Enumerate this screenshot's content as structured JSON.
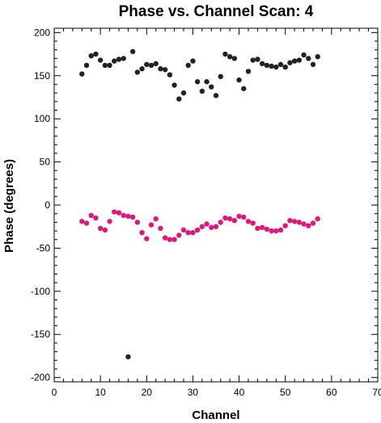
{
  "chart_data": {
    "type": "scatter",
    "title": "Phase vs. Channel Scan: 4",
    "xlabel": "Channel",
    "ylabel": "Phase (degrees)",
    "xlim": [
      0,
      70
    ],
    "ylim": [
      -205,
      205
    ],
    "x_ticks": [
      0,
      10,
      20,
      30,
      40,
      50,
      60,
      70
    ],
    "y_ticks": [
      -200,
      -150,
      -100,
      -50,
      0,
      50,
      100,
      150,
      200
    ],
    "grid": false,
    "series": [
      {
        "color": "#222222",
        "points": [
          [
            6,
            152
          ],
          [
            7,
            162
          ],
          [
            8,
            173
          ],
          [
            9,
            175
          ],
          [
            10,
            168
          ],
          [
            11,
            162
          ],
          [
            12,
            162
          ],
          [
            13,
            167
          ],
          [
            14,
            169
          ],
          [
            15,
            170
          ],
          [
            16,
            -176
          ],
          [
            17,
            178
          ],
          [
            18,
            154
          ],
          [
            19,
            158
          ],
          [
            20,
            163
          ],
          [
            21,
            162
          ],
          [
            22,
            164
          ],
          [
            23,
            158
          ],
          [
            24,
            157
          ],
          [
            25,
            151
          ],
          [
            26,
            139
          ],
          [
            27,
            123
          ],
          [
            28,
            130
          ],
          [
            29,
            162
          ],
          [
            30,
            167
          ],
          [
            31,
            143
          ],
          [
            32,
            132
          ],
          [
            33,
            143
          ],
          [
            34,
            137
          ],
          [
            35,
            127
          ],
          [
            36,
            149
          ],
          [
            37,
            175
          ],
          [
            38,
            172
          ],
          [
            39,
            170
          ],
          [
            40,
            145
          ],
          [
            41,
            135
          ],
          [
            42,
            155
          ],
          [
            43,
            168
          ],
          [
            44,
            169
          ],
          [
            45,
            164
          ],
          [
            46,
            162
          ],
          [
            47,
            161
          ],
          [
            48,
            160
          ],
          [
            49,
            163
          ],
          [
            50,
            160
          ],
          [
            51,
            165
          ],
          [
            52,
            167
          ],
          [
            53,
            168
          ],
          [
            54,
            174
          ],
          [
            55,
            170
          ],
          [
            56,
            163
          ],
          [
            57,
            172
          ]
        ]
      },
      {
        "color": "#e0177a",
        "points": [
          [
            6,
            -19
          ],
          [
            7,
            -21
          ],
          [
            8,
            -12
          ],
          [
            9,
            -15
          ],
          [
            10,
            -27
          ],
          [
            11,
            -29
          ],
          [
            12,
            -19
          ],
          [
            13,
            -8
          ],
          [
            14,
            -9
          ],
          [
            15,
            -12
          ],
          [
            16,
            -13
          ],
          [
            17,
            -14
          ],
          [
            18,
            -20
          ],
          [
            19,
            -32
          ],
          [
            20,
            -39
          ],
          [
            21,
            -23
          ],
          [
            22,
            -16
          ],
          [
            23,
            -27
          ],
          [
            24,
            -38
          ],
          [
            25,
            -40
          ],
          [
            26,
            -40
          ],
          [
            27,
            -35
          ],
          [
            28,
            -29
          ],
          [
            29,
            -32
          ],
          [
            30,
            -32
          ],
          [
            31,
            -29
          ],
          [
            32,
            -25
          ],
          [
            33,
            -22
          ],
          [
            34,
            -26
          ],
          [
            35,
            -25
          ],
          [
            36,
            -20
          ],
          [
            37,
            -15
          ],
          [
            38,
            -16
          ],
          [
            39,
            -18
          ],
          [
            40,
            -13
          ],
          [
            41,
            -14
          ],
          [
            42,
            -19
          ],
          [
            43,
            -21
          ],
          [
            44,
            -27
          ],
          [
            45,
            -26
          ],
          [
            46,
            -28
          ],
          [
            47,
            -30
          ],
          [
            48,
            -30
          ],
          [
            49,
            -29
          ],
          [
            50,
            -24
          ],
          [
            51,
            -18
          ],
          [
            52,
            -19
          ],
          [
            53,
            -20
          ],
          [
            54,
            -22
          ],
          [
            55,
            -24
          ],
          [
            56,
            -21
          ],
          [
            57,
            -16
          ]
        ]
      }
    ]
  }
}
